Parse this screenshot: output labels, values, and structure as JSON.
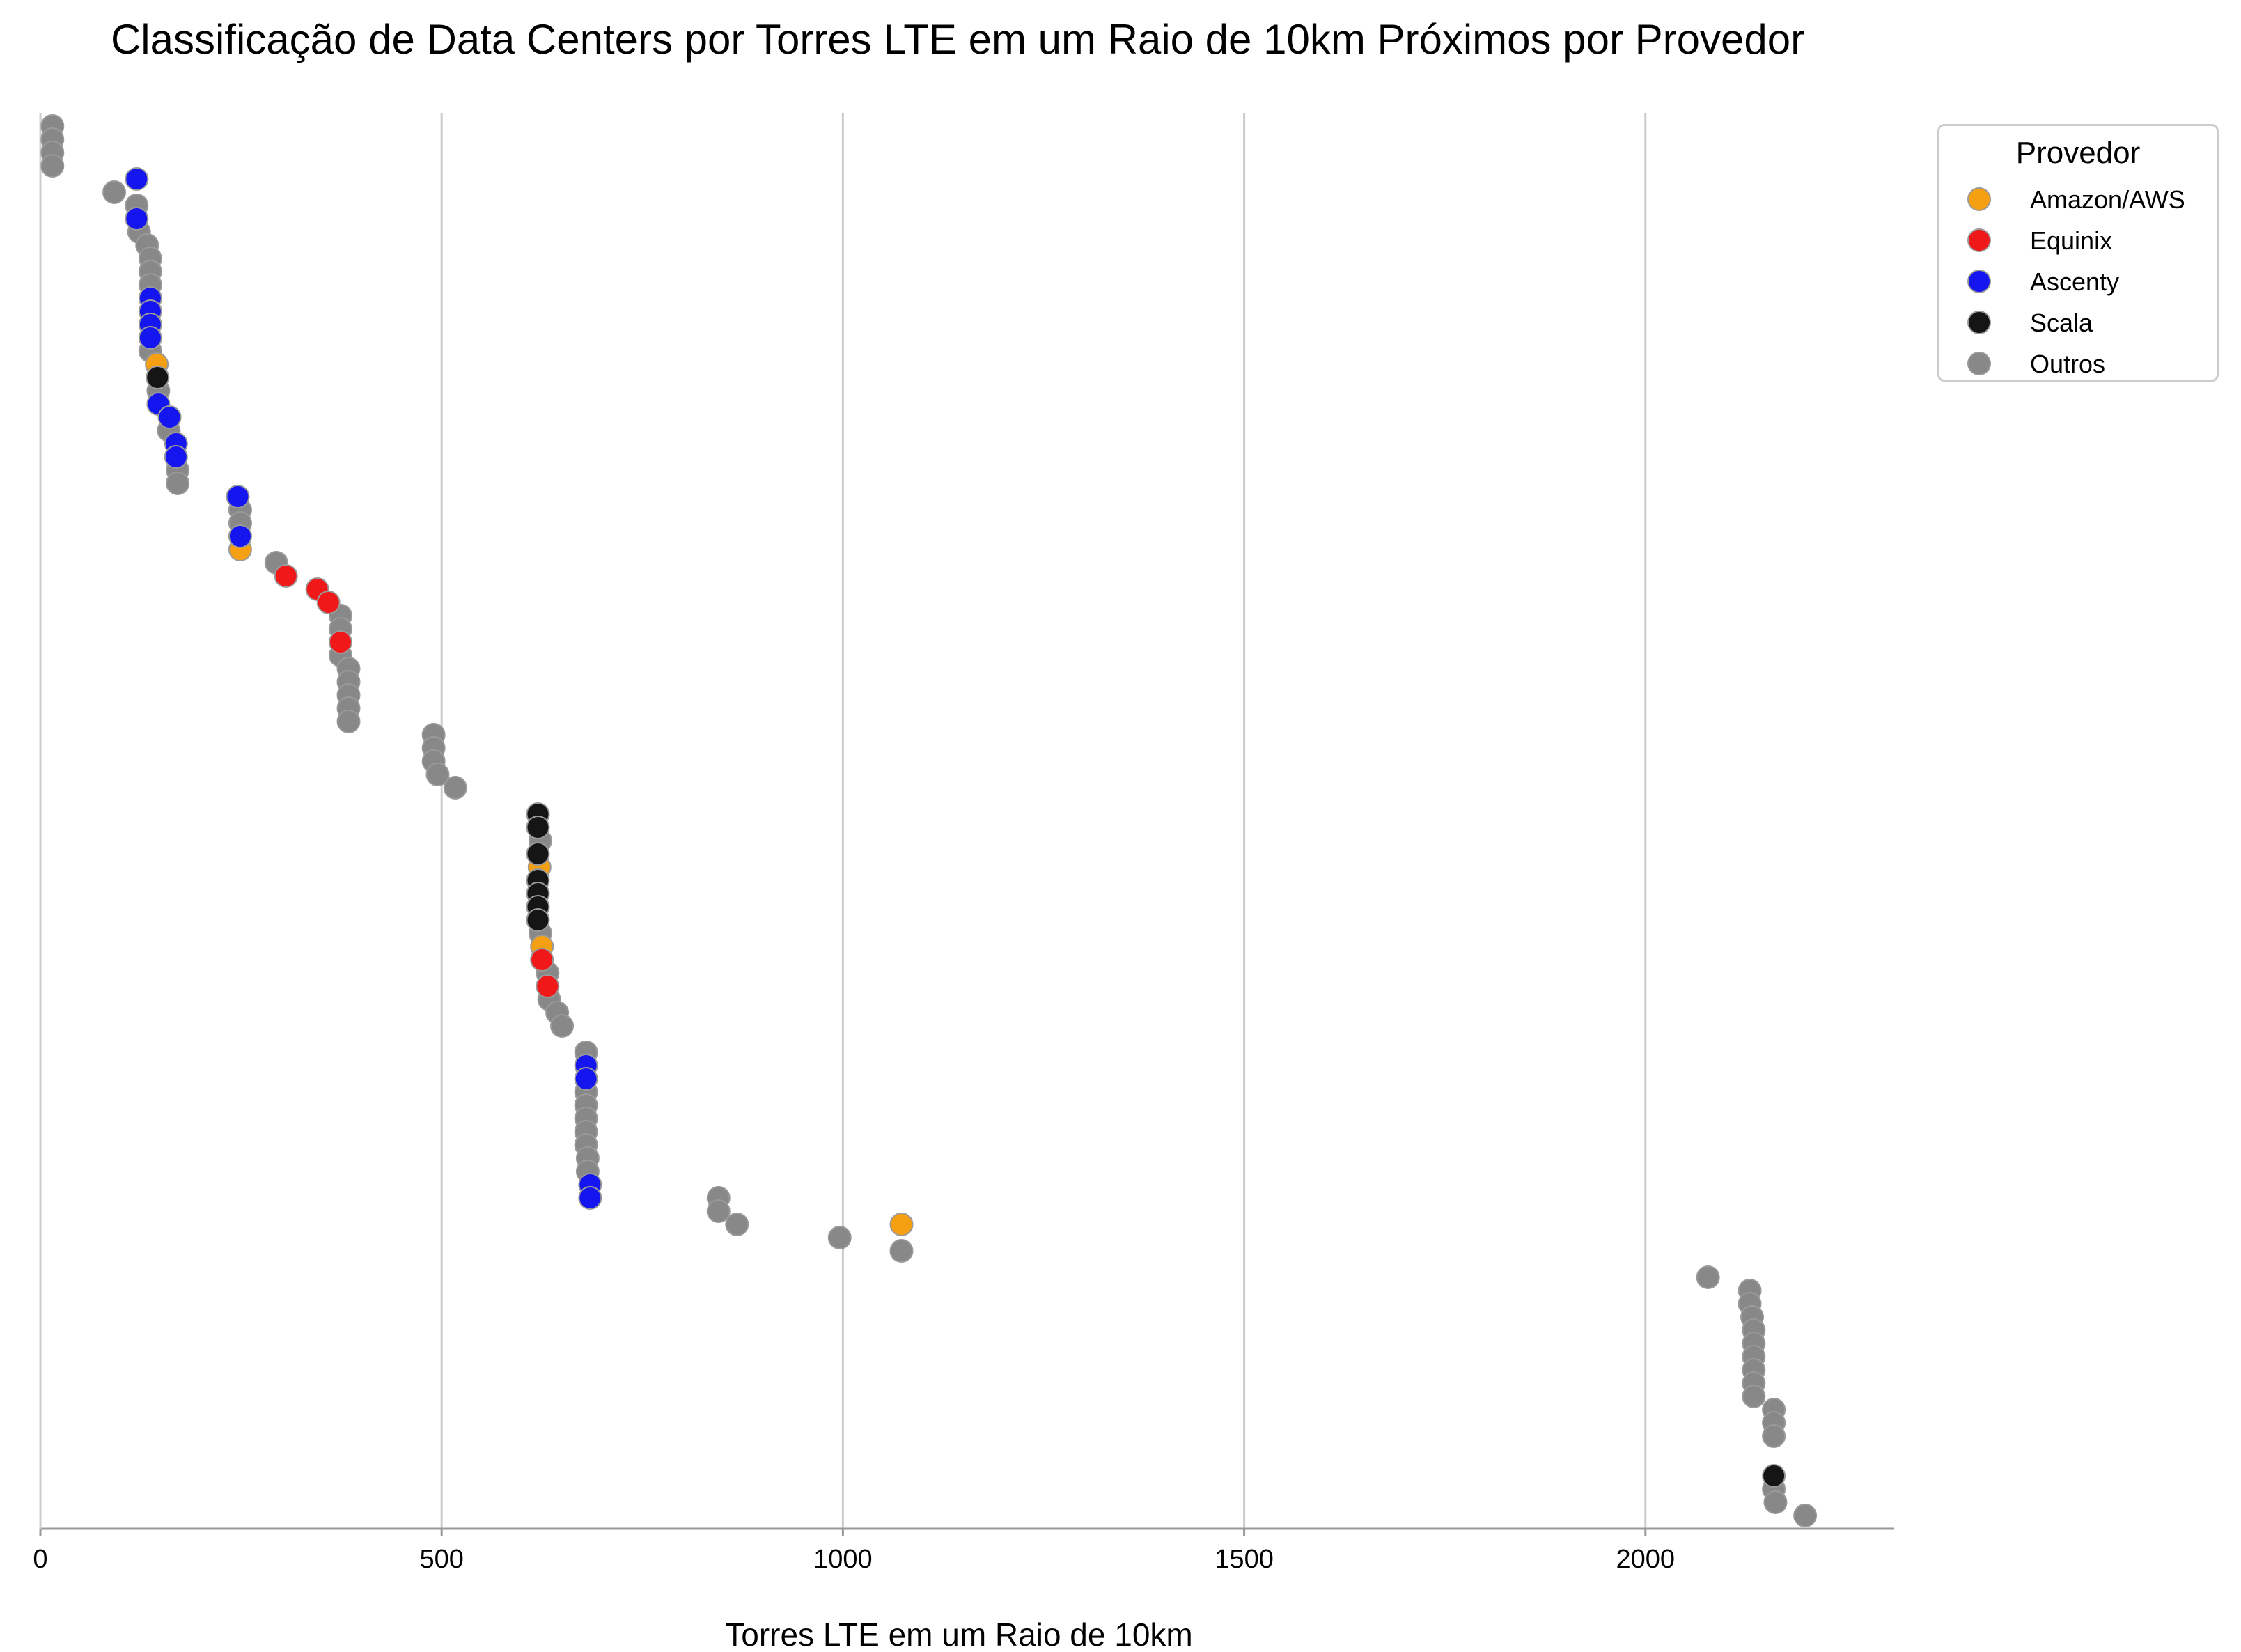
{
  "chart_data": {
    "type": "scatter",
    "title": "Classificação de Data Centers por Torres LTE em um Raio de 10km Próximos por Provedor",
    "xlabel": "Torres LTE em um Raio de 10km",
    "ylabel": "",
    "xlim": [
      0,
      2310
    ],
    "x_ticks": [
      0,
      500,
      1000,
      1500,
      2000
    ],
    "grid": "vertical",
    "legend": {
      "title": "Provedor",
      "placement": "outside-top-right",
      "entries": [
        "Amazon/AWS",
        "Equinix",
        "Ascenty",
        "Scala",
        "Outros"
      ]
    },
    "colors": {
      "Amazon/AWS": "#f5a012",
      "Equinix": "#f01818",
      "Ascenty": "#1515f0",
      "Scala": "#151515",
      "Outros": "#888888",
      "grid": "#cccccc",
      "axis": "#999999"
    },
    "series": [
      {
        "name": "Amazon/AWS",
        "points": [
          [
            145,
            19
          ],
          [
            249,
            33
          ],
          [
            622,
            57
          ],
          [
            625,
            63
          ],
          [
            1073,
            84
          ]
        ]
      },
      {
        "name": "Equinix",
        "points": [
          [
            306,
            35
          ],
          [
            345,
            36
          ],
          [
            359,
            37
          ],
          [
            374,
            40
          ],
          [
            625,
            64
          ],
          [
            632,
            66
          ]
        ]
      },
      {
        "name": "Ascenty",
        "points": [
          [
            120,
            5
          ],
          [
            120,
            8
          ],
          [
            137,
            14
          ],
          [
            137,
            15
          ],
          [
            137,
            16
          ],
          [
            137,
            17
          ],
          [
            147,
            22
          ],
          [
            161,
            23
          ],
          [
            169,
            25
          ],
          [
            169,
            26
          ],
          [
            246,
            29
          ],
          [
            249,
            32
          ],
          [
            680,
            72
          ],
          [
            680,
            73
          ],
          [
            685,
            81
          ],
          [
            685,
            82
          ]
        ]
      },
      {
        "name": "Scala",
        "points": [
          [
            146,
            20
          ],
          [
            620,
            53
          ],
          [
            620,
            54
          ],
          [
            620,
            56
          ],
          [
            620,
            58
          ],
          [
            620,
            59
          ],
          [
            620,
            60
          ],
          [
            620,
            61
          ],
          [
            2160,
            103
          ]
        ]
      },
      {
        "name": "Outros",
        "points": [
          [
            15,
            1
          ],
          [
            15,
            2
          ],
          [
            15,
            3
          ],
          [
            15,
            4
          ],
          [
            92,
            6
          ],
          [
            120,
            7
          ],
          [
            123,
            9
          ],
          [
            133,
            10
          ],
          [
            137,
            11
          ],
          [
            137,
            12
          ],
          [
            137,
            13
          ],
          [
            137,
            18
          ],
          [
            147,
            21
          ],
          [
            160,
            24
          ],
          [
            171,
            27
          ],
          [
            171,
            28
          ],
          [
            249,
            30
          ],
          [
            249,
            31
          ],
          [
            294,
            34
          ],
          [
            374,
            38
          ],
          [
            374,
            39
          ],
          [
            374,
            41
          ],
          [
            384,
            42
          ],
          [
            384,
            43
          ],
          [
            384,
            44
          ],
          [
            384,
            45
          ],
          [
            384,
            46
          ],
          [
            490,
            47
          ],
          [
            490,
            48
          ],
          [
            490,
            49
          ],
          [
            495,
            50
          ],
          [
            517,
            51
          ],
          [
            623,
            55
          ],
          [
            623,
            62
          ],
          [
            632,
            65
          ],
          [
            634,
            67
          ],
          [
            644,
            68
          ],
          [
            650,
            69
          ],
          [
            680,
            71
          ],
          [
            680,
            74
          ],
          [
            680,
            75
          ],
          [
            680,
            76
          ],
          [
            680,
            77
          ],
          [
            680,
            78
          ],
          [
            682,
            79
          ],
          [
            682,
            80
          ],
          [
            845,
            82
          ],
          [
            845,
            83
          ],
          [
            868,
            84
          ],
          [
            996,
            85
          ],
          [
            1073,
            86
          ],
          [
            2078,
            88
          ],
          [
            2130,
            89
          ],
          [
            2130,
            90
          ],
          [
            2133,
            91
          ],
          [
            2135,
            92
          ],
          [
            2135,
            93
          ],
          [
            2135,
            94
          ],
          [
            2135,
            95
          ],
          [
            2135,
            96
          ],
          [
            2135,
            97
          ],
          [
            2160,
            98
          ],
          [
            2160,
            99
          ],
          [
            2160,
            100
          ],
          [
            2160,
            104
          ],
          [
            2162,
            105
          ],
          [
            2199,
            106
          ]
        ]
      }
    ]
  }
}
